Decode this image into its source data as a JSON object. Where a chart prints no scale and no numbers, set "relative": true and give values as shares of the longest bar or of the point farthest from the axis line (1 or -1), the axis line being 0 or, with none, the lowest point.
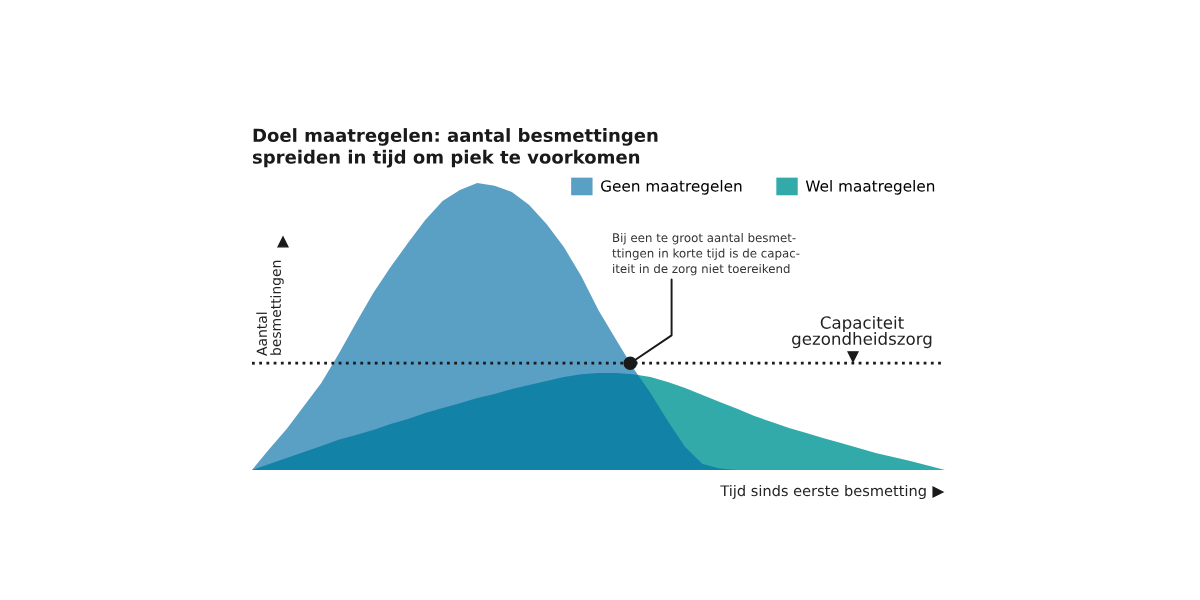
{
  "chart_data": {
    "type": "area",
    "title": "Doel maatregelen: aantal besmettingen\nspreiden in tijd om piek te voorkomen",
    "xlabel": "Tijd sinds eerste besmetting",
    "ylabel": "Aantal\nbesmettingen",
    "relative": true,
    "categories": [
      null,
      null,
      null,
      null,
      null,
      null,
      null,
      null,
      null,
      null,
      null,
      null,
      null,
      null,
      null,
      null,
      null,
      null,
      null,
      null,
      null,
      null,
      null,
      null,
      null,
      null,
      null,
      null,
      null,
      null,
      null,
      null,
      null,
      null,
      null,
      null,
      null,
      null,
      null,
      null,
      null
    ],
    "series": [
      {
        "name": "Geen maatregelen",
        "color": "#5a9fc4",
        "values": [
          0,
          0.073,
          0.143,
          0.223,
          0.303,
          0.404,
          0.512,
          0.617,
          0.707,
          0.791,
          0.871,
          0.937,
          0.976,
          1.0,
          0.99,
          0.969,
          0.923,
          0.857,
          0.777,
          0.676,
          0.557,
          0.456,
          0.355,
          0.268,
          0.171,
          0.08,
          0.021,
          0.005,
          0,
          0,
          0,
          0,
          0,
          0,
          0,
          0,
          0,
          0,
          0,
          0,
          0
        ]
      },
      {
        "name": "Wel maatregelen",
        "color": "#31aaa9",
        "values": [
          0,
          0.021,
          0.042,
          0.063,
          0.084,
          0.105,
          0.122,
          0.139,
          0.16,
          0.178,
          0.199,
          0.216,
          0.233,
          0.251,
          0.265,
          0.282,
          0.296,
          0.31,
          0.324,
          0.334,
          0.338,
          0.338,
          0.334,
          0.324,
          0.307,
          0.286,
          0.261,
          0.237,
          0.213,
          0.188,
          0.167,
          0.146,
          0.129,
          0.111,
          0.094,
          0.077,
          0.059,
          0.045,
          0.031,
          0.016,
          0
        ]
      }
    ],
    "legend": "top right",
    "ref_lines": [
      {
        "axis": "y",
        "value": 0.372,
        "label": "Capaciteit\ngezondheidszorg",
        "color": "#1a1a1a",
        "line_style": "dotted"
      }
    ],
    "annotations": [
      "Bij een te groot aantal besmet-\nttingen in korte tijd is de capac-\niteit in de zorg niet toereikend"
    ]
  }
}
